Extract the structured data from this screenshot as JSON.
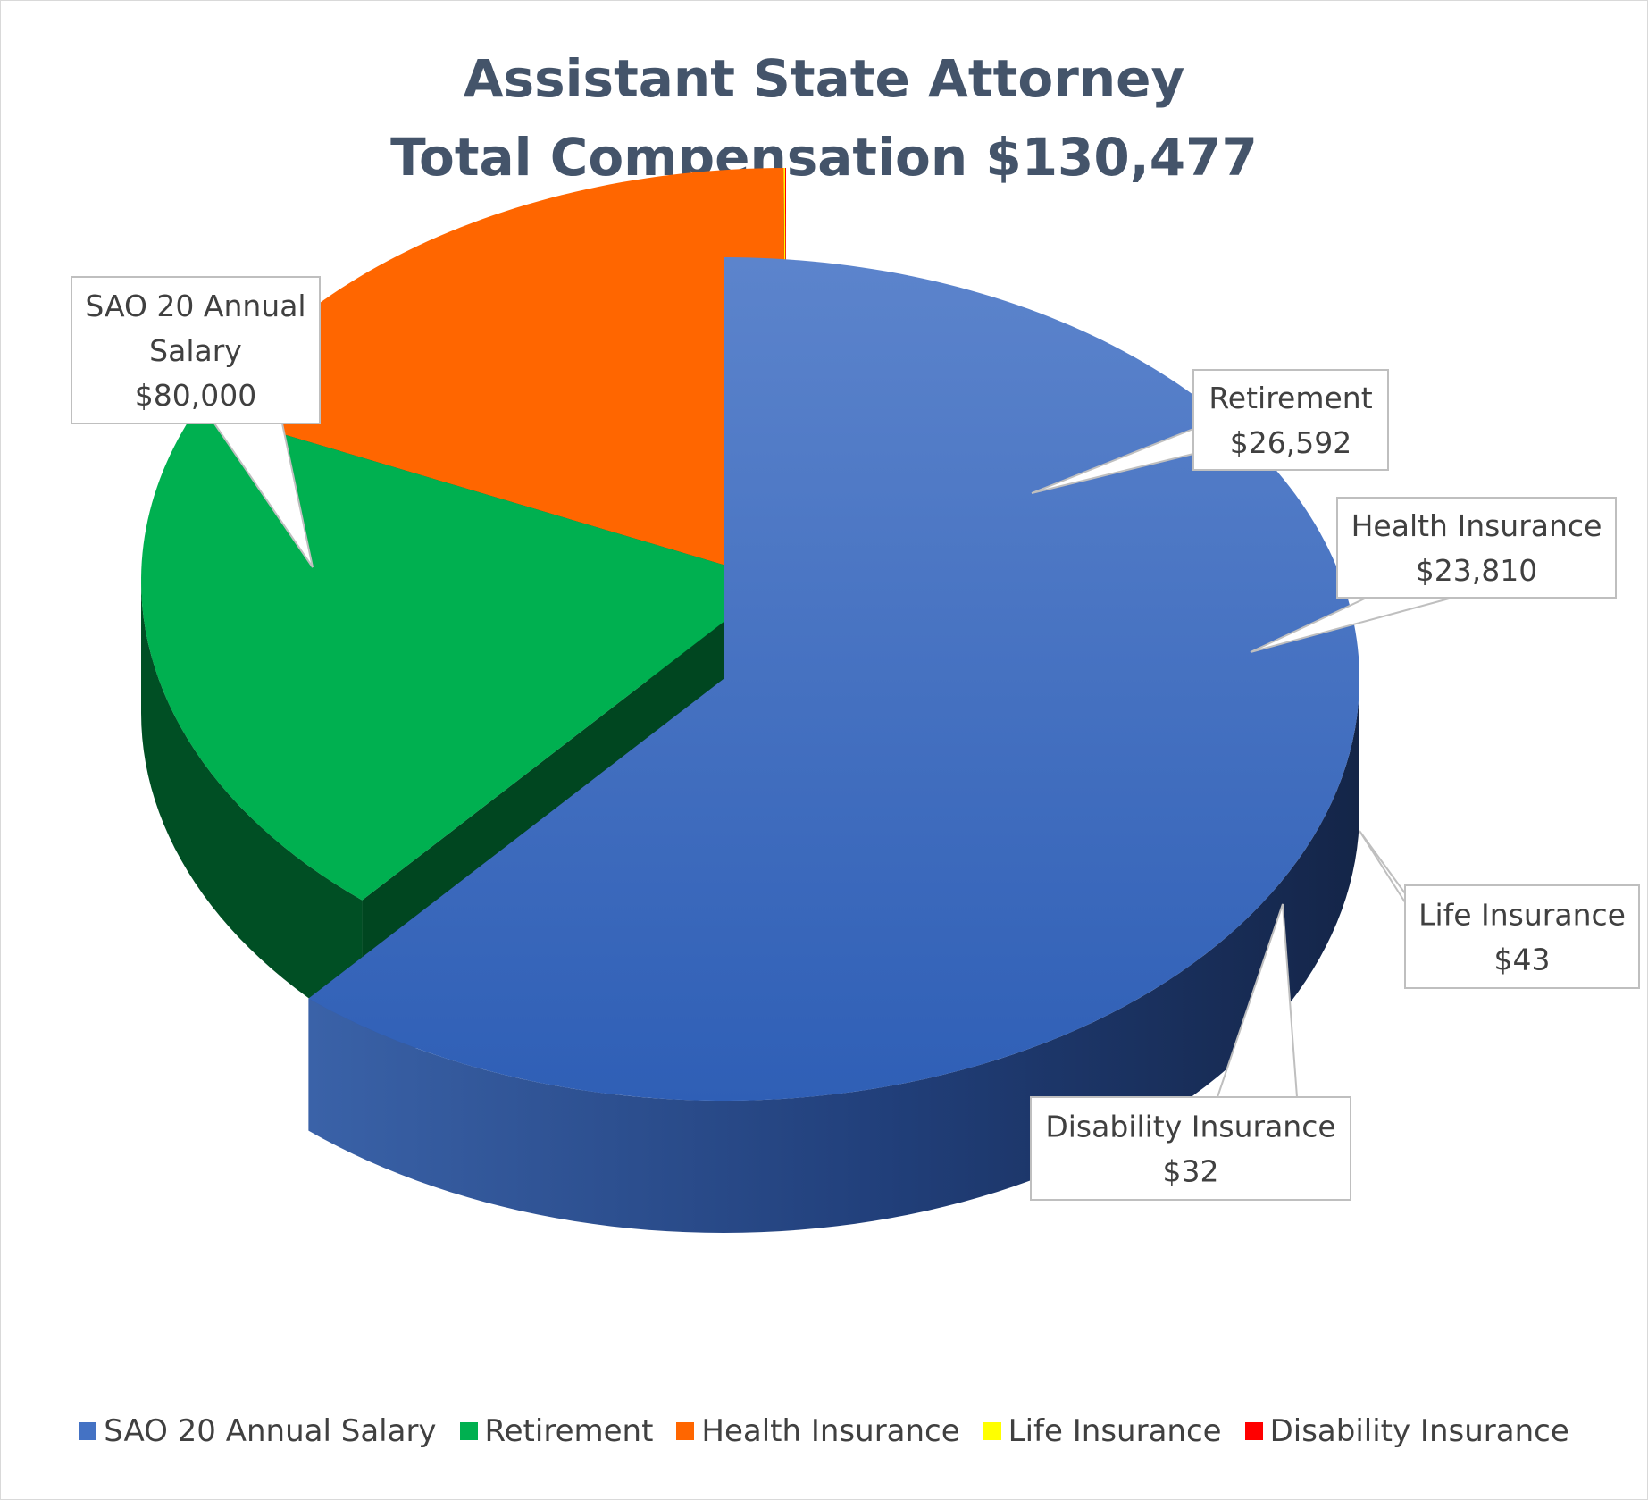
{
  "chart_data": {
    "type": "pie",
    "title_lines": [
      "Assistant State Attorney",
      "Total Compensation $130,477"
    ],
    "series": [
      {
        "name": "SAO 20 Annual Salary",
        "value": 80000,
        "label_lines": [
          "SAO 20 Annual",
          "Salary",
          "$80,000"
        ],
        "color": "#4472c4"
      },
      {
        "name": "Retirement",
        "value": 26592,
        "label_lines": [
          "Retirement",
          "$26,592"
        ],
        "color": "#00b050"
      },
      {
        "name": "Health Insurance",
        "value": 23810,
        "label_lines": [
          "Health Insurance",
          "$23,810"
        ],
        "color": "#ff6600"
      },
      {
        "name": "Life Insurance",
        "value": 43,
        "label_lines": [
          "Life Insurance",
          "$43"
        ],
        "color": "#ffff00"
      },
      {
        "name": "Disability Insurance",
        "value": 32,
        "label_lines": [
          "Disability Insurance",
          "$32"
        ],
        "color": "#ff0000"
      }
    ],
    "style": "3d-exploded",
    "legend_position": "bottom"
  }
}
